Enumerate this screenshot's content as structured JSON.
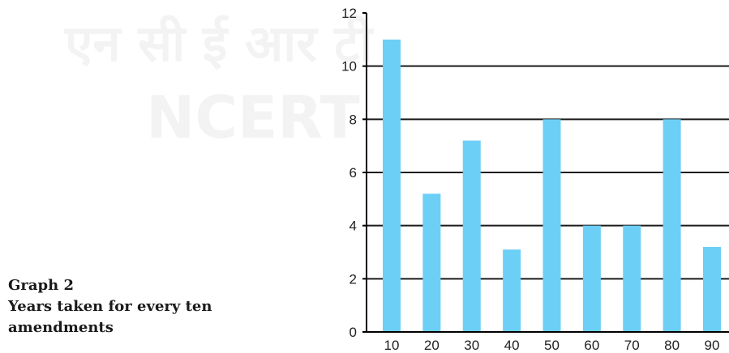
{
  "caption": {
    "label": "Graph 2",
    "title": "Years taken for every ten amendments"
  },
  "watermark": {
    "line1": "एन सी ई आर टी",
    "line2": "NCERT"
  },
  "colors": {
    "bar": "#6ccff6",
    "axis": "#000000",
    "grid": "#1a1a1a",
    "watermark": "#f4f4f4"
  },
  "chart_data": {
    "type": "bar",
    "categories": [
      "10",
      "20",
      "30",
      "40",
      "50",
      "60",
      "70",
      "80",
      "90"
    ],
    "values": [
      11,
      5.2,
      7.2,
      3.1,
      8,
      4,
      4,
      8,
      3.2
    ],
    "title": "",
    "xlabel": "",
    "ylabel": "",
    "ylim": [
      0,
      12
    ],
    "yticks": [
      "0",
      "2",
      "4",
      "6",
      "8",
      "10",
      "12"
    ],
    "grid": true,
    "legend": "none"
  }
}
